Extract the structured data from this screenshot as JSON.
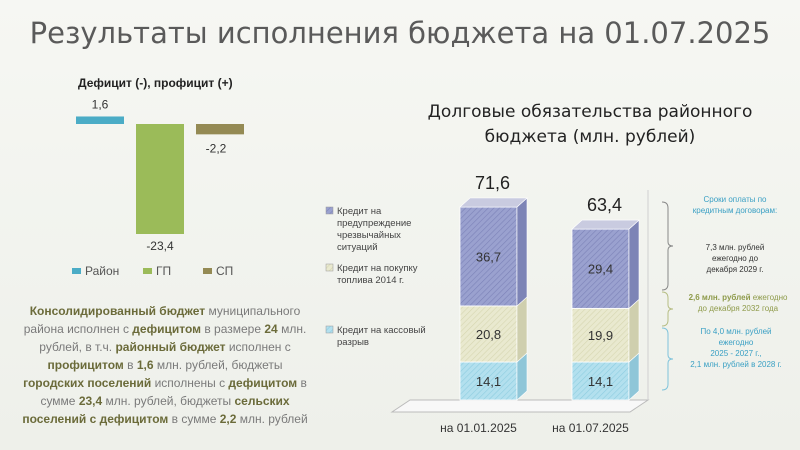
{
  "page": {
    "title": "Результаты исполнения бюджета на 01.07.2025"
  },
  "left_chart_title": "Дефицит (-), профицит (+)",
  "right_chart_title_line1": "Долговые обязательства районного",
  "right_chart_title_line2": "бюджета (млн. рублей)",
  "summary": {
    "p1": "Консолидированный бюджет",
    "p2": " муниципального района исполнен с ",
    "p3": "дефицитом",
    "p4": " в размере ",
    "p5": "24",
    "p6": " млн. рублей, в т.ч. ",
    "p7": "районный бюджет",
    "p8": " исполнен с ",
    "p9": "профицитом",
    "p10": " в ",
    "p11": "1,6",
    "p12": " млн. рублей, бюджеты ",
    "p13": "городских поселений",
    "p14": " исполнены с ",
    "p15": "дефицитом",
    "p16": " в сумме ",
    "p17": "23,4",
    "p18": " млн. рублей, бюджеты ",
    "p19": "сельских поселений с дефицитом",
    "p20": " в сумме ",
    "p21": "2,2",
    "p22": " млн. рублей"
  },
  "notes": {
    "header_line1": "Сроки оплаты по",
    "header_line2": "кредитным договорам:",
    "n1_line1": "7,3 млн. рублей",
    "n1_line2": "ежегодно до",
    "n1_line3": "декабря 2029 г.",
    "n2_bold": "2,6 млн. рублей",
    "n2_rest": " ежегодно",
    "n2_line2": "до декабря 2032 года",
    "n3_line1": "По 4,0 млн. рублей",
    "n3_line2": "ежегодно",
    "n3_line3": "2025 - 2027 г.,",
    "n3_line4": "2,1 млн. рублей в 2028 г."
  },
  "colors": {
    "rayon": "#4bacc6",
    "gp": "#9bbb59",
    "sp": "#948a54",
    "credit_warning": "#8f96c8",
    "credit_fuel": "#e4e4c8",
    "credit_cash": "#a8d9ea",
    "notes_blue": "#3aa0c4",
    "notes_olive": "#8e9a4a",
    "notes_dark": "#333333"
  },
  "chart_data": [
    {
      "type": "bar",
      "title": "Дефицит (-), профицит (+)",
      "categories": [
        "Район",
        "ГП",
        "СП"
      ],
      "values": [
        1.6,
        -23.4,
        -2.2
      ],
      "value_labels": [
        "1,6",
        "-23,4",
        "-2,2"
      ],
      "legend": [
        "Район",
        "ГП",
        "СП"
      ],
      "legend_position": "bottom",
      "ylim": [
        -23.4,
        1.6
      ]
    },
    {
      "type": "bar",
      "stacked": true,
      "title": "Долговые обязательства районного бюджета (млн. рублей)",
      "categories": [
        "на 01.01.2025",
        "на 01.07.2025"
      ],
      "totals": [
        71.6,
        63.4
      ],
      "total_labels": [
        "71,6",
        "63,4"
      ],
      "series": [
        {
          "name": "Кредит на кассовый разрыв",
          "values": [
            14.1,
            14.1
          ],
          "labels": [
            "14,1",
            "14,1"
          ]
        },
        {
          "name": "Кредит на покупку топлива 2014 г.",
          "values": [
            20.8,
            19.9
          ],
          "labels": [
            "20,8",
            "19,9"
          ]
        },
        {
          "name": "Кредит на предупреждение чрезвычайных ситуаций",
          "values": [
            36.7,
            29.4
          ],
          "labels": [
            "36,7",
            "29,4"
          ]
        }
      ],
      "legend_lines": [
        [
          "Кредит на",
          "предупреждение",
          "чрезвычайных",
          "ситуаций"
        ],
        [
          "Кредит на покупку",
          "топлива 2014 г."
        ],
        [
          "Кредит на кассовый",
          "разрыв"
        ]
      ],
      "legend_position": "left",
      "ylim": [
        0,
        71.6
      ]
    }
  ]
}
